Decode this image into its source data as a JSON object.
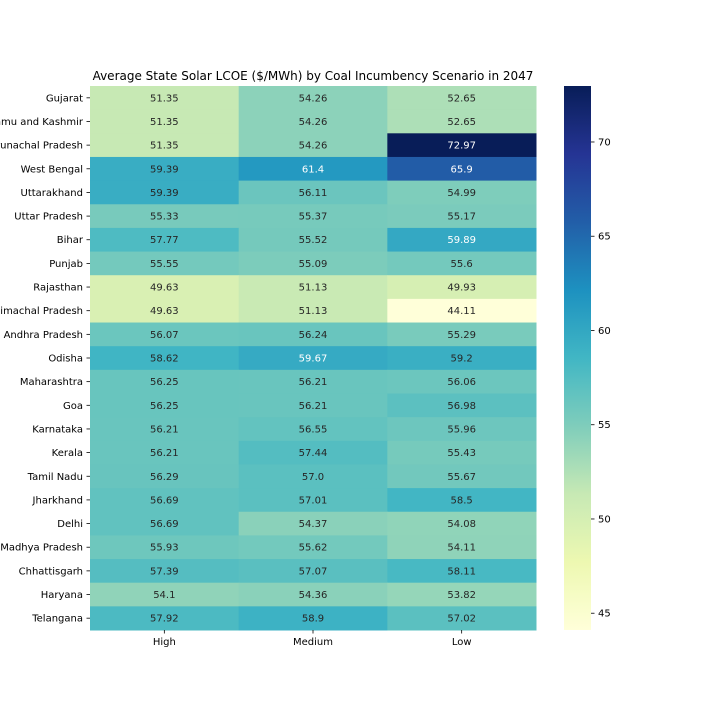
{
  "chart_data": {
    "type": "heatmap",
    "title": "Average State Solar LCOE ($/MWh) by Coal Incumbency Scenario in 2047",
    "xlabel": "",
    "ylabel": "",
    "columns": [
      "High",
      "Medium",
      "Low"
    ],
    "rows": [
      "Gujarat",
      "Jammu and Kashmir",
      "Arunachal Pradesh",
      "West Bengal",
      "Uttarakhand",
      "Uttar Pradesh",
      "Bihar",
      "Punjab",
      "Rajasthan",
      "Himachal Pradesh",
      "Andhra Pradesh",
      "Odisha",
      "Maharashtra",
      "Goa",
      "Karnataka",
      "Kerala",
      "Tamil Nadu",
      "Jharkhand",
      "Delhi",
      "Madhya Pradesh",
      "Chhattisgarh",
      "Haryana",
      "Telangana"
    ],
    "values": [
      [
        51.35,
        54.26,
        52.65
      ],
      [
        51.35,
        54.26,
        52.65
      ],
      [
        51.35,
        54.26,
        72.97
      ],
      [
        59.39,
        61.4,
        65.9
      ],
      [
        59.39,
        56.11,
        54.99
      ],
      [
        55.33,
        55.37,
        55.17
      ],
      [
        57.77,
        55.52,
        59.89
      ],
      [
        55.55,
        55.09,
        55.6
      ],
      [
        49.63,
        51.13,
        49.93
      ],
      [
        49.63,
        51.13,
        44.11
      ],
      [
        56.07,
        56.24,
        55.29
      ],
      [
        58.62,
        59.67,
        59.2
      ],
      [
        56.25,
        56.21,
        56.06
      ],
      [
        56.25,
        56.21,
        56.98
      ],
      [
        56.21,
        56.55,
        55.96
      ],
      [
        56.21,
        57.44,
        55.43
      ],
      [
        56.29,
        57.0,
        55.67
      ],
      [
        56.69,
        57.01,
        58.5
      ],
      [
        56.69,
        54.37,
        54.08
      ],
      [
        55.93,
        55.62,
        54.11
      ],
      [
        57.39,
        57.07,
        58.11
      ],
      [
        54.1,
        54.36,
        53.82
      ],
      [
        57.92,
        58.9,
        57.02
      ]
    ],
    "value_labels": [
      [
        "51.35",
        "54.26",
        "52.65"
      ],
      [
        "51.35",
        "54.26",
        "52.65"
      ],
      [
        "51.35",
        "54.26",
        "72.97"
      ],
      [
        "59.39",
        "61.4",
        "65.9"
      ],
      [
        "59.39",
        "56.11",
        "54.99"
      ],
      [
        "55.33",
        "55.37",
        "55.17"
      ],
      [
        "57.77",
        "55.52",
        "59.89"
      ],
      [
        "55.55",
        "55.09",
        "55.6"
      ],
      [
        "49.63",
        "51.13",
        "49.93"
      ],
      [
        "49.63",
        "51.13",
        "44.11"
      ],
      [
        "56.07",
        "56.24",
        "55.29"
      ],
      [
        "58.62",
        "59.67",
        "59.2"
      ],
      [
        "56.25",
        "56.21",
        "56.06"
      ],
      [
        "56.25",
        "56.21",
        "56.98"
      ],
      [
        "56.21",
        "56.55",
        "55.96"
      ],
      [
        "56.21",
        "57.44",
        "55.43"
      ],
      [
        "56.29",
        "57.0",
        "55.67"
      ],
      [
        "56.69",
        "57.01",
        "58.5"
      ],
      [
        "56.69",
        "54.37",
        "54.08"
      ],
      [
        "55.93",
        "55.62",
        "54.11"
      ],
      [
        "57.39",
        "57.07",
        "58.11"
      ],
      [
        "54.1",
        "54.36",
        "53.82"
      ],
      [
        "57.92",
        "58.9",
        "57.02"
      ]
    ],
    "colormap": "YlGnBu",
    "color_range": [
      44.11,
      72.97
    ],
    "colorbar_ticks": [
      45,
      50,
      55,
      60,
      65,
      70
    ],
    "colorbar_tick_labels": [
      "45",
      "50",
      "55",
      "60",
      "65",
      "70"
    ],
    "legend": "colorbar-right"
  }
}
